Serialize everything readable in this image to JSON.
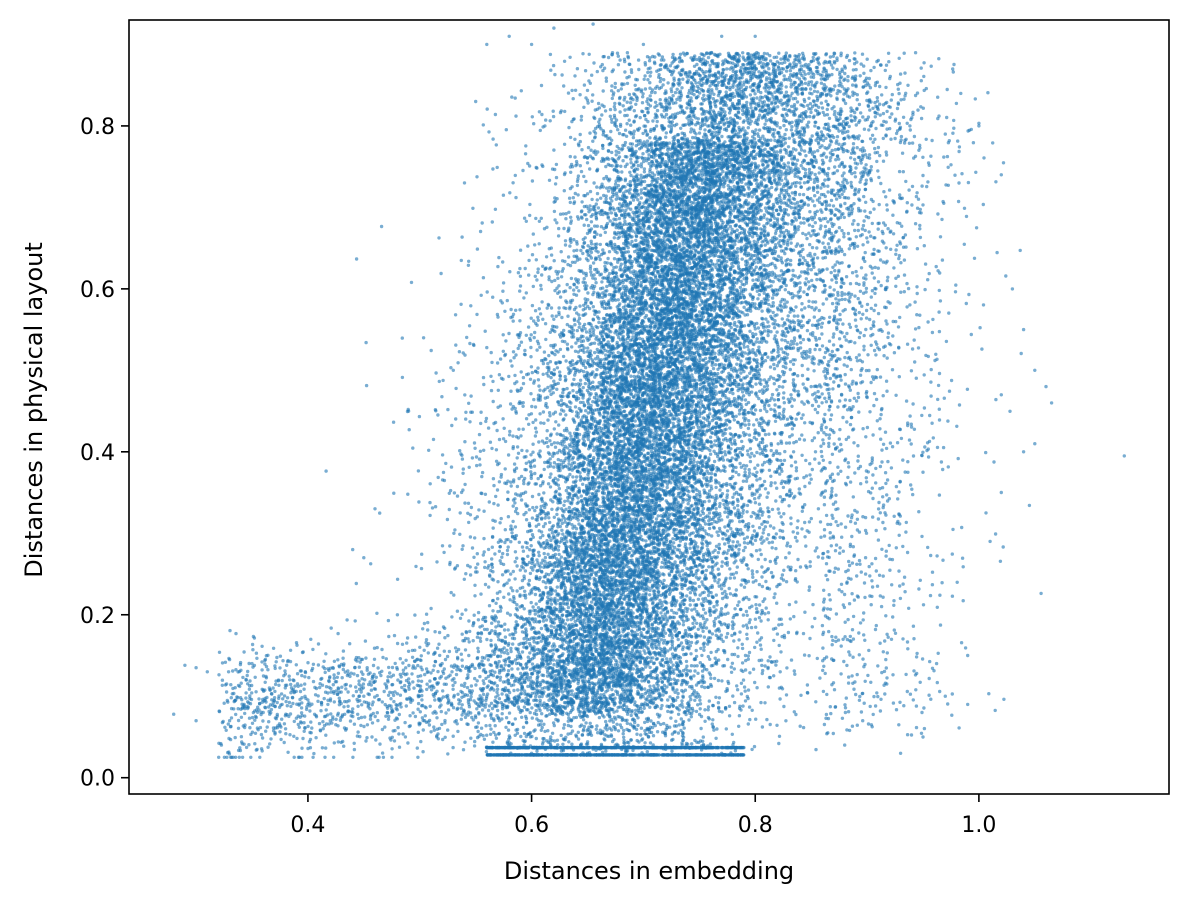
{
  "chart_data": {
    "type": "scatter",
    "title": "",
    "xlabel": "Distances in embedding",
    "ylabel": "Distances in physical layout",
    "xlim": [
      0.24,
      1.17
    ],
    "ylim": [
      -0.02,
      0.93
    ],
    "xticks": [
      0.4,
      0.6,
      0.8,
      1.0
    ],
    "xtick_labels": [
      "0.4",
      "0.6",
      "0.8",
      "1.0"
    ],
    "yticks": [
      0.0,
      0.2,
      0.4,
      0.6,
      0.8
    ],
    "ytick_labels": [
      "0.0",
      "0.2",
      "0.4",
      "0.6",
      "0.8"
    ],
    "grid": false,
    "legend": "none",
    "marker_color": "#1f77b4",
    "marker_alpha": 0.6,
    "series": [
      {
        "values": [
          [
            0.29,
            0.138
          ],
          [
            0.3,
            0.135
          ],
          [
            0.31,
            0.13
          ],
          [
            0.33,
            0.145
          ],
          [
            0.35,
            0.14
          ],
          [
            0.28,
            0.078
          ],
          [
            0.3,
            0.07
          ],
          [
            0.33,
            0.07
          ],
          [
            0.36,
            0.08
          ],
          [
            0.38,
            0.06
          ],
          [
            0.4,
            0.09
          ],
          [
            0.42,
            0.07
          ],
          [
            0.44,
            0.08
          ],
          [
            0.45,
            0.1
          ],
          [
            0.46,
            0.33
          ],
          [
            0.44,
            0.28
          ],
          [
            0.45,
            0.27
          ],
          [
            0.49,
            0.45
          ],
          [
            0.5,
            0.16
          ],
          [
            0.52,
            0.14
          ],
          [
            0.48,
            0.2
          ],
          [
            0.53,
            0.5
          ],
          [
            0.54,
            0.73
          ],
          [
            0.55,
            0.83
          ],
          [
            0.56,
            0.9
          ],
          [
            0.58,
            0.91
          ],
          [
            0.6,
            0.9
          ],
          [
            0.62,
            0.92
          ],
          [
            0.655,
            0.925
          ],
          [
            0.7,
            0.9
          ],
          [
            0.77,
            0.91
          ],
          [
            0.8,
            0.91
          ],
          [
            0.85,
            0.86
          ],
          [
            0.89,
            0.85
          ],
          [
            0.91,
            0.82
          ],
          [
            0.94,
            0.81
          ],
          [
            0.97,
            0.79
          ],
          [
            1.0,
            0.8
          ],
          [
            1.02,
            0.74
          ],
          [
            1.03,
            0.6
          ],
          [
            1.04,
            0.55
          ],
          [
            1.05,
            0.5
          ],
          [
            1.06,
            0.48
          ],
          [
            1.065,
            0.46
          ],
          [
            1.04,
            0.4
          ],
          [
            1.05,
            0.41
          ],
          [
            1.02,
            0.47
          ],
          [
            1.02,
            0.35
          ],
          [
            1.01,
            0.29
          ],
          [
            1.13,
            0.395
          ],
          [
            0.99,
            0.09
          ],
          [
            0.99,
            0.15
          ],
          [
            0.97,
            0.1
          ],
          [
            0.95,
            0.05
          ],
          [
            0.93,
            0.03
          ],
          [
            0.88,
            0.04
          ],
          [
            0.77,
            0.03
          ],
          [
            0.6,
            0.03
          ],
          [
            0.58,
            0.04
          ],
          [
            0.65,
            0.03
          ]
        ]
      }
    ]
  }
}
